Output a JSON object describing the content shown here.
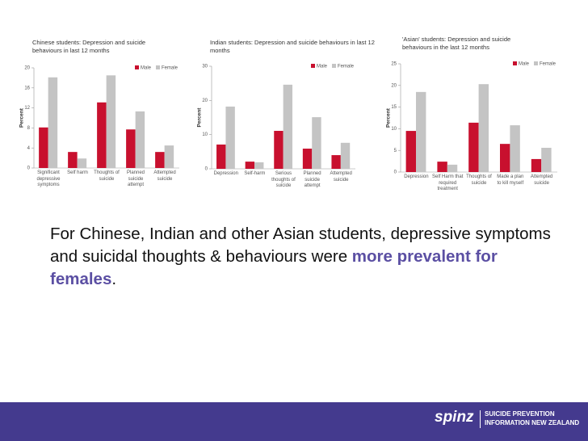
{
  "chart_data": [
    {
      "type": "bar",
      "title": "Chinese students: Depression and suicide behaviours in last 12 months",
      "y_label": "Percent",
      "categories": [
        "Significant depressive symptoms",
        "Self harm",
        "Thoughts of suicide",
        "Planned suicide attempt",
        "Attempted suicide"
      ],
      "series": [
        {
          "name": "Male",
          "color": "#c8102e",
          "values": [
            8.1,
            3.2,
            13.1,
            7.7,
            3.2
          ]
        },
        {
          "name": "Female",
          "color": "#c4c4c4",
          "values": [
            18.1,
            1.9,
            18.5,
            11.3,
            4.5
          ]
        }
      ],
      "ylim": [
        0,
        20
      ],
      "yticks": [
        0,
        4,
        8,
        12,
        16,
        20
      ]
    },
    {
      "type": "bar",
      "title": "Indian students: Depression and suicide behaviours in last 12 months",
      "y_label": "Percent",
      "categories": [
        "Depression",
        "Self-harm",
        "Serious thoughts of suicide",
        "Planned suicide attempt",
        "Attempted suicide"
      ],
      "series": [
        {
          "name": "Male",
          "color": "#c8102e",
          "values": [
            7.1,
            2.1,
            11.1,
            5.9,
            4.0
          ]
        },
        {
          "name": "Female",
          "color": "#c4c4c4",
          "values": [
            18.2,
            1.9,
            24.6,
            15.1,
            7.6
          ]
        }
      ],
      "ylim": [
        0,
        30
      ],
      "yticks": [
        0,
        10,
        20,
        30
      ]
    },
    {
      "type": "bar",
      "title": "'Asian' students: Depression and suicide behaviours in the last 12 months",
      "y_label": "Percent",
      "categories": [
        "Depression",
        "Self Harm that required treatment",
        "Thoughts of suicide",
        "Made a plan to kill myself",
        "Attempted suicide"
      ],
      "series": [
        {
          "name": "Male",
          "color": "#c8102e",
          "values": [
            9.5,
            2.4,
            11.4,
            6.5,
            3.0
          ]
        },
        {
          "name": "Female",
          "color": "#c4c4c4",
          "values": [
            18.5,
            1.7,
            20.3,
            10.8,
            5.6
          ]
        }
      ],
      "ylim": [
        0,
        25
      ],
      "yticks": [
        0,
        5,
        10,
        15,
        20,
        25
      ]
    }
  ],
  "body": {
    "text_before": "For Chinese, Indian and other Asian students, depressive symptoms and suicidal thoughts & behaviours were ",
    "emphasis": "more prevalent for females",
    "text_after": "."
  },
  "footer": {
    "brand": "spinz",
    "line1": "SUICIDE PREVENTION",
    "line2": "INFORMATION NEW ZEALAND"
  }
}
